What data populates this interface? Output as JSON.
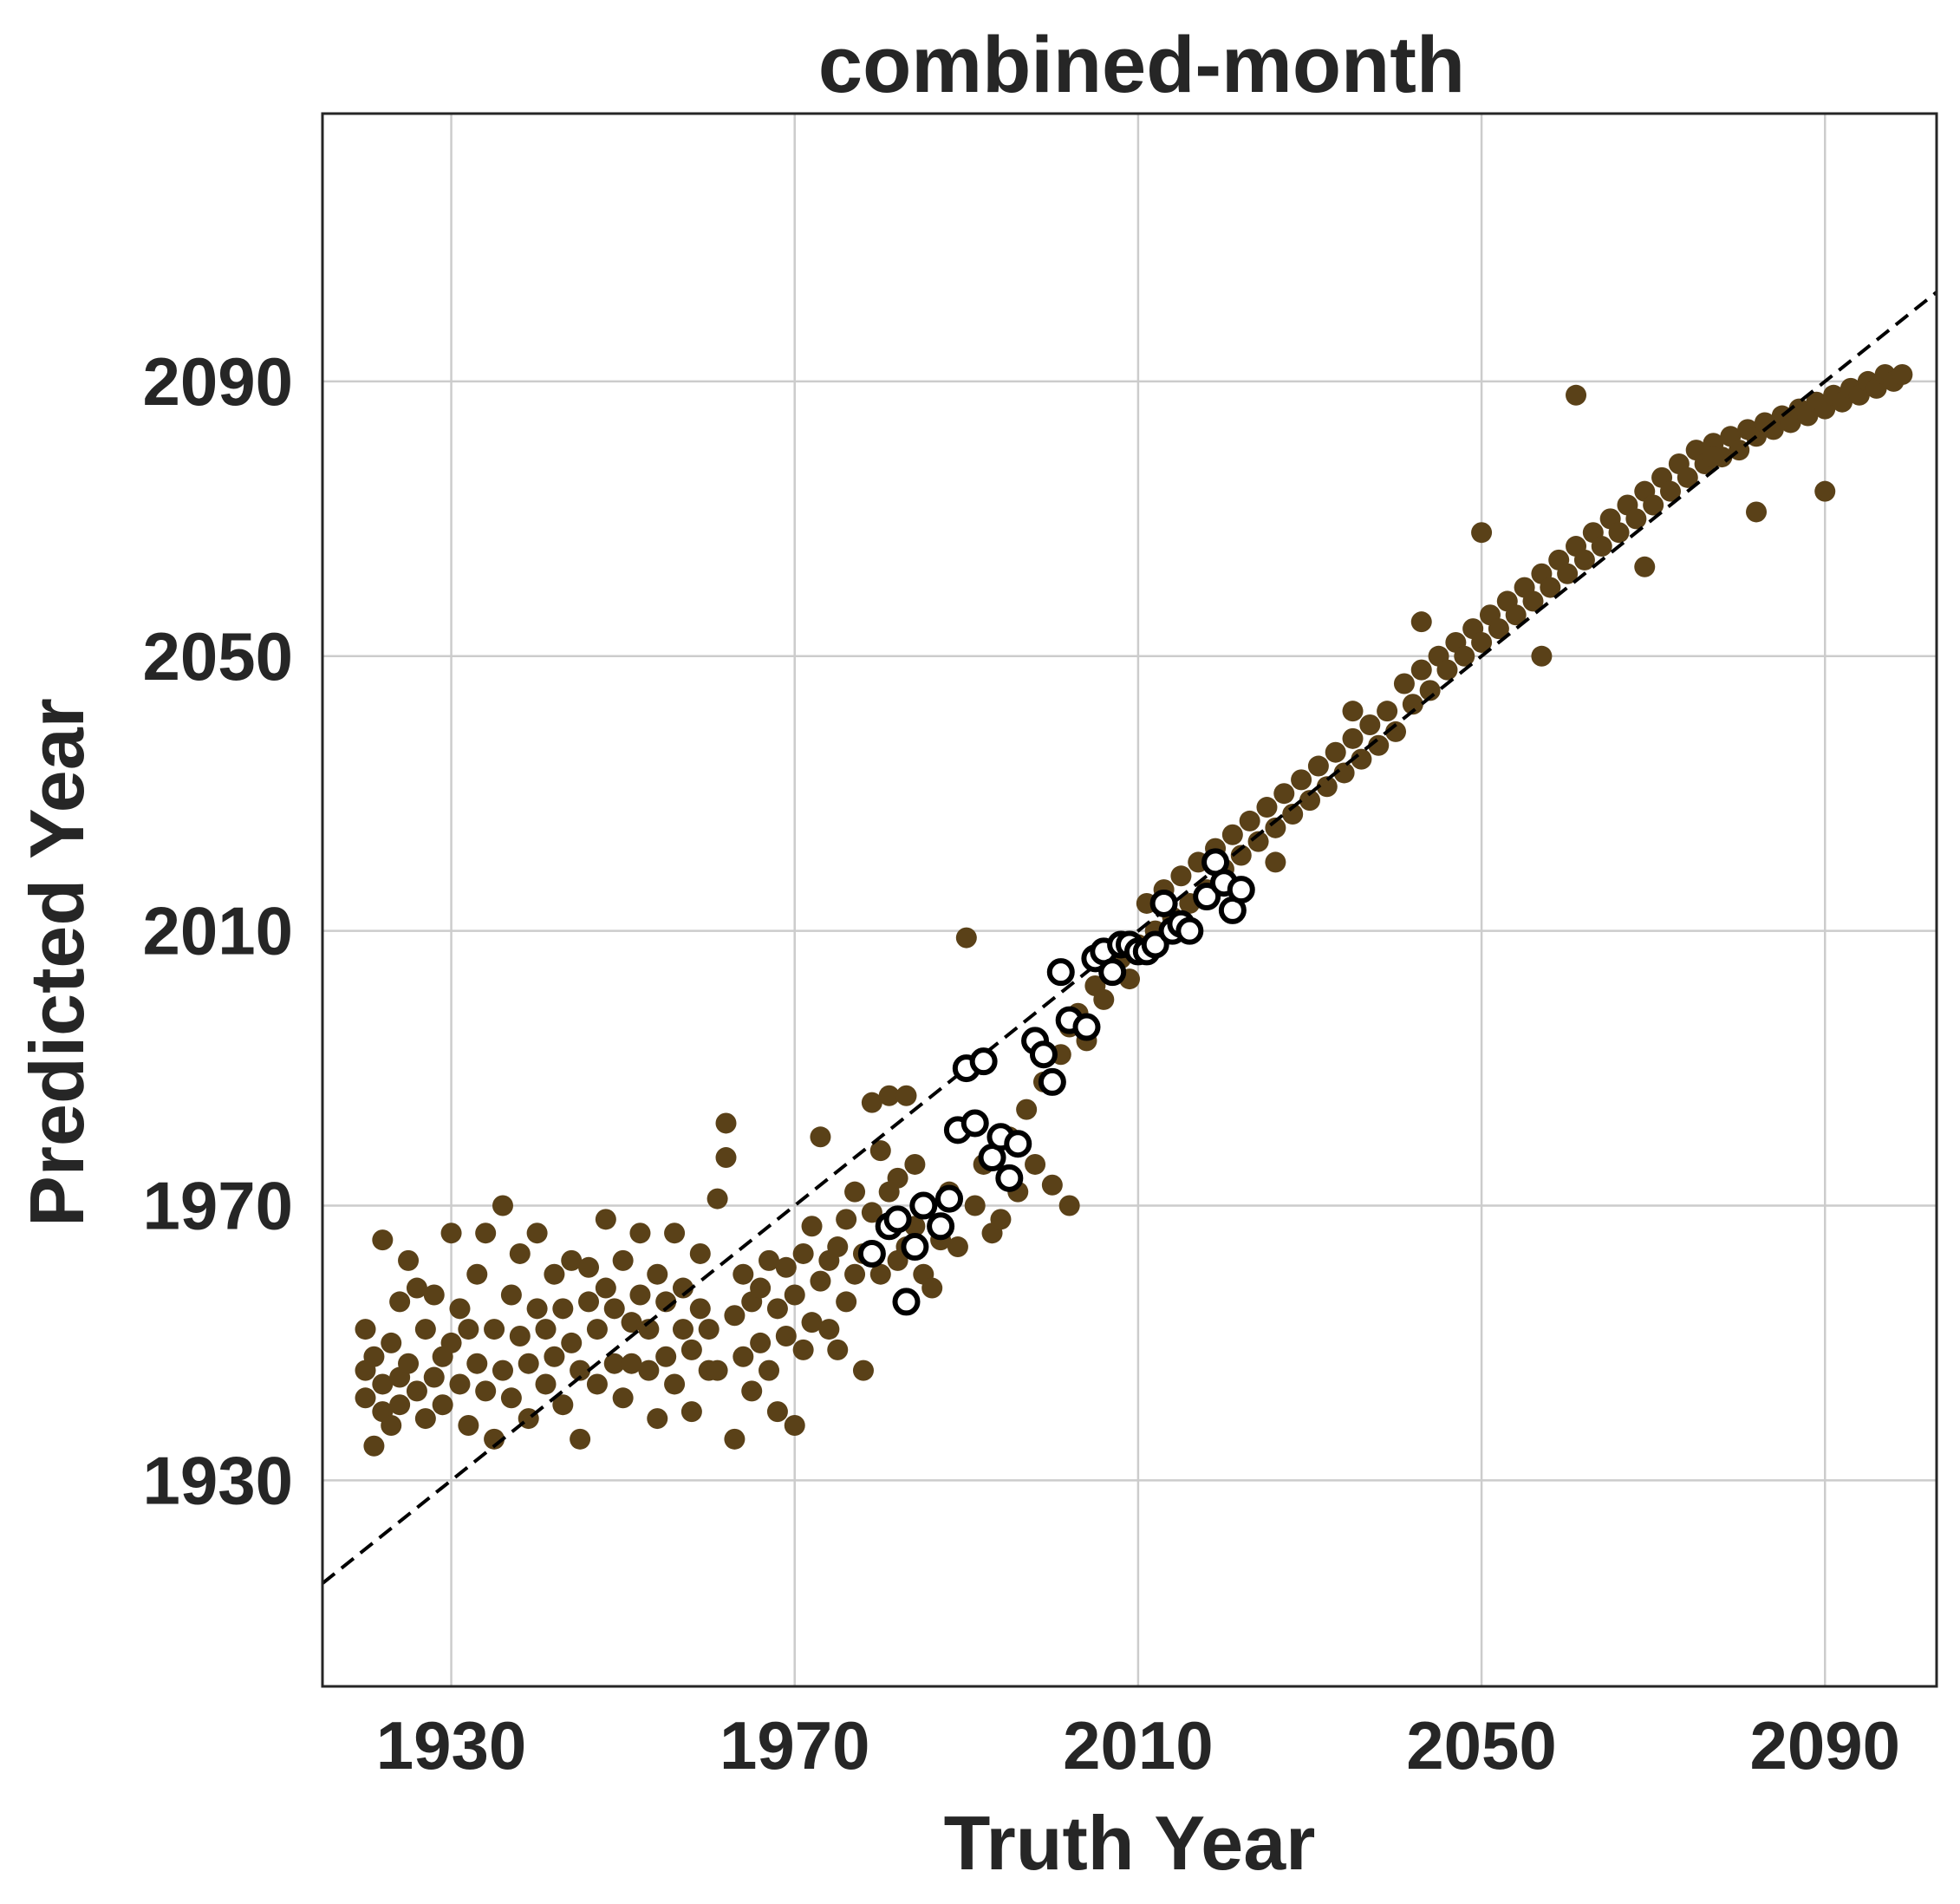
{
  "chart_data": {
    "type": "scatter",
    "title": "combined-month",
    "xlabel": "Truth Year",
    "ylabel": "Predicted Year",
    "xlim": [
      1915,
      2103
    ],
    "ylim": [
      1900,
      2129
    ],
    "xticks": [
      1930,
      1970,
      2010,
      2050,
      2090
    ],
    "yticks": [
      1930,
      1970,
      2010,
      2050,
      2090
    ],
    "grid": true,
    "reference_line": {
      "style": "dashed",
      "color": "#000000",
      "from": [
        1915,
        1915
      ],
      "to": [
        2103,
        2103
      ]
    },
    "series": [
      {
        "marker": "filled-circle",
        "color": "#5a4118",
        "points": [
          [
            1920,
            1946
          ],
          [
            1920,
            1942
          ],
          [
            1920,
            1952
          ],
          [
            1921,
            1935
          ],
          [
            1921,
            1948
          ],
          [
            1922,
            1965
          ],
          [
            1922,
            1944
          ],
          [
            1922,
            1940
          ],
          [
            1923,
            1950
          ],
          [
            1923,
            1938
          ],
          [
            1924,
            1945
          ],
          [
            1924,
            1956
          ],
          [
            1924,
            1941
          ],
          [
            1925,
            1962
          ],
          [
            1925,
            1947
          ],
          [
            1926,
            1958
          ],
          [
            1926,
            1943
          ],
          [
            1927,
            1939
          ],
          [
            1927,
            1952
          ],
          [
            1928,
            1945
          ],
          [
            1928,
            1957
          ],
          [
            1929,
            1948
          ],
          [
            1929,
            1941
          ],
          [
            1930,
            1966
          ],
          [
            1930,
            1950
          ],
          [
            1931,
            1944
          ],
          [
            1931,
            1955
          ],
          [
            1932,
            1938
          ],
          [
            1932,
            1952
          ],
          [
            1933,
            1947
          ],
          [
            1933,
            1960
          ],
          [
            1934,
            1943
          ],
          [
            1934,
            1966
          ],
          [
            1935,
            1952
          ],
          [
            1935,
            1936
          ],
          [
            1936,
            1970
          ],
          [
            1936,
            1946
          ],
          [
            1937,
            1957
          ],
          [
            1937,
            1942
          ],
          [
            1938,
            1963
          ],
          [
            1938,
            1951
          ],
          [
            1939,
            1947
          ],
          [
            1939,
            1939
          ],
          [
            1940,
            1955
          ],
          [
            1940,
            1966
          ],
          [
            1941,
            1944
          ],
          [
            1941,
            1952
          ],
          [
            1942,
            1960
          ],
          [
            1942,
            1948
          ],
          [
            1943,
            1941
          ],
          [
            1943,
            1955
          ],
          [
            1944,
            1962
          ],
          [
            1944,
            1950
          ],
          [
            1945,
            1936
          ],
          [
            1945,
            1946
          ],
          [
            1946,
            1956
          ],
          [
            1946,
            1961
          ],
          [
            1947,
            1944
          ],
          [
            1947,
            1952
          ],
          [
            1948,
            1968
          ],
          [
            1948,
            1958
          ],
          [
            1949,
            1947
          ],
          [
            1949,
            1955
          ],
          [
            1950,
            1942
          ],
          [
            1950,
            1962
          ],
          [
            1951,
            1953
          ],
          [
            1951,
            1947
          ],
          [
            1952,
            1966
          ],
          [
            1952,
            1957
          ],
          [
            1953,
            1946
          ],
          [
            1953,
            1952
          ],
          [
            1954,
            1939
          ],
          [
            1954,
            1960
          ],
          [
            1955,
            1948
          ],
          [
            1955,
            1956
          ],
          [
            1956,
            1966
          ],
          [
            1956,
            1944
          ],
          [
            1957,
            1952
          ],
          [
            1957,
            1958
          ],
          [
            1958,
            1940
          ],
          [
            1958,
            1949
          ],
          [
            1959,
            1955
          ],
          [
            1959,
            1963
          ],
          [
            1960,
            1946
          ],
          [
            1960,
            1952
          ],
          [
            1961,
            1971
          ],
          [
            1961,
            1946
          ],
          [
            1962,
            1977
          ],
          [
            1962,
            1982
          ],
          [
            1963,
            1954
          ],
          [
            1963,
            1936
          ],
          [
            1964,
            1948
          ],
          [
            1964,
            1960
          ],
          [
            1965,
            1956
          ],
          [
            1965,
            1943
          ],
          [
            1966,
            1958
          ],
          [
            1966,
            1950
          ],
          [
            1967,
            1962
          ],
          [
            1967,
            1946
          ],
          [
            1968,
            1955
          ],
          [
            1968,
            1940
          ],
          [
            1969,
            1961
          ],
          [
            1969,
            1951
          ],
          [
            1970,
            1957
          ],
          [
            1970,
            1938
          ],
          [
            1971,
            1949
          ],
          [
            1971,
            1963
          ],
          [
            1972,
            1967
          ],
          [
            1972,
            1953
          ],
          [
            1973,
            1959
          ],
          [
            1973,
            1980
          ],
          [
            1974,
            1962
          ],
          [
            1974,
            1952
          ],
          [
            1975,
            1964
          ],
          [
            1975,
            1949
          ],
          [
            1976,
            1968
          ],
          [
            1976,
            1956
          ],
          [
            1977,
            1972
          ],
          [
            1977,
            1960
          ],
          [
            1978,
            1963
          ],
          [
            1978,
            1946
          ],
          [
            1979,
            1985
          ],
          [
            1979,
            1969
          ],
          [
            1980,
            1960
          ],
          [
            1980,
            1978
          ],
          [
            1981,
            1986
          ],
          [
            1981,
            1972
          ],
          [
            1982,
            1974
          ],
          [
            1982,
            1962
          ],
          [
            1983,
            1986
          ],
          [
            1983,
            1964
          ],
          [
            1984,
            1976
          ],
          [
            1984,
            1967
          ],
          [
            1985,
            1970
          ],
          [
            1985,
            1960
          ],
          [
            1986,
            1958
          ],
          [
            1987,
            1965
          ],
          [
            1988,
            1972
          ],
          [
            1989,
            1964
          ],
          [
            1990,
            2009
          ],
          [
            1991,
            1970
          ],
          [
            1992,
            1976
          ],
          [
            1993,
            1966
          ],
          [
            1994,
            1968
          ],
          [
            1995,
            1980
          ],
          [
            1996,
            1972
          ],
          [
            1997,
            1984
          ],
          [
            1998,
            1976
          ],
          [
            1999,
            1988
          ],
          [
            2000,
            1973
          ],
          [
            2001,
            1992
          ],
          [
            2002,
            1970
          ],
          [
            2002,
            1996
          ],
          [
            2003,
            1998
          ],
          [
            2004,
            1994
          ],
          [
            2005,
            2002
          ],
          [
            2006,
            2000
          ],
          [
            2007,
            2004
          ],
          [
            2008,
            2006
          ],
          [
            2009,
            2003
          ],
          [
            2010,
            2008
          ],
          [
            2011,
            2014
          ],
          [
            2012,
            2010
          ],
          [
            2013,
            2016
          ],
          [
            2014,
            2012
          ],
          [
            2015,
            2018
          ],
          [
            2016,
            2014
          ],
          [
            2017,
            2020
          ],
          [
            2018,
            2016
          ],
          [
            2019,
            2022
          ],
          [
            2020,
            2019
          ],
          [
            2021,
            2024
          ],
          [
            2022,
            2021
          ],
          [
            2023,
            2026
          ],
          [
            2024,
            2023
          ],
          [
            2025,
            2028
          ],
          [
            2026,
            2025
          ],
          [
            2027,
            2030
          ],
          [
            2028,
            2027
          ],
          [
            2029,
            2032
          ],
          [
            2030,
            2029
          ],
          [
            2031,
            2034
          ],
          [
            2032,
            2031
          ],
          [
            2033,
            2036
          ],
          [
            2034,
            2033
          ],
          [
            2035,
            2038
          ],
          [
            2036,
            2035
          ],
          [
            2037,
            2040
          ],
          [
            2038,
            2037
          ],
          [
            2039,
            2042
          ],
          [
            2040,
            2039
          ],
          [
            2041,
            2046
          ],
          [
            2042,
            2043
          ],
          [
            2043,
            2048
          ],
          [
            2044,
            2045
          ],
          [
            2045,
            2050
          ],
          [
            2046,
            2048
          ],
          [
            2047,
            2052
          ],
          [
            2048,
            2050
          ],
          [
            2049,
            2054
          ],
          [
            2050,
            2052
          ],
          [
            2051,
            2056
          ],
          [
            2052,
            2054
          ],
          [
            2053,
            2058
          ],
          [
            2054,
            2056
          ],
          [
            2055,
            2060
          ],
          [
            2056,
            2058
          ],
          [
            2057,
            2062
          ],
          [
            2058,
            2060
          ],
          [
            2059,
            2064
          ],
          [
            2060,
            2062
          ],
          [
            2061,
            2066
          ],
          [
            2062,
            2064
          ],
          [
            2063,
            2068
          ],
          [
            2064,
            2066
          ],
          [
            2065,
            2070
          ],
          [
            2066,
            2068
          ],
          [
            2067,
            2072
          ],
          [
            2068,
            2070
          ],
          [
            2069,
            2074
          ],
          [
            2070,
            2072
          ],
          [
            2071,
            2076
          ],
          [
            2072,
            2074
          ],
          [
            2073,
            2078
          ],
          [
            2074,
            2076
          ],
          [
            2075,
            2080
          ],
          [
            2076,
            2078
          ],
          [
            2077,
            2081
          ],
          [
            2078,
            2079
          ],
          [
            2079,
            2082
          ],
          [
            2080,
            2080
          ],
          [
            2081,
            2083
          ],
          [
            2082,
            2082
          ],
          [
            2083,
            2084
          ],
          [
            2084,
            2083
          ],
          [
            2085,
            2085
          ],
          [
            2086,
            2084
          ],
          [
            2087,
            2086
          ],
          [
            2088,
            2085
          ],
          [
            2089,
            2087
          ],
          [
            2090,
            2086
          ],
          [
            2091,
            2088
          ],
          [
            2092,
            2087
          ],
          [
            2093,
            2089
          ],
          [
            2094,
            2088
          ],
          [
            2095,
            2090
          ],
          [
            2096,
            2089
          ],
          [
            2097,
            2091
          ],
          [
            2098,
            2090
          ],
          [
            2099,
            2091
          ],
          [
            2061,
            2088
          ],
          [
            2082,
            2071
          ],
          [
            2069,
            2063
          ],
          [
            2050,
            2068
          ],
          [
            2035,
            2042
          ],
          [
            2026,
            2020
          ],
          [
            2043,
            2055
          ],
          [
            2057,
            2050
          ],
          [
            2077,
            2079
          ],
          [
            2090,
            2074
          ]
        ]
      },
      {
        "marker": "open-circle",
        "edge_color": "#000000",
        "face_color": "#ffffff",
        "points": [
          [
            1979,
            1963
          ],
          [
            1981,
            1967
          ],
          [
            1982,
            1968
          ],
          [
            1983,
            1956
          ],
          [
            1984,
            1964
          ],
          [
            1985,
            1970
          ],
          [
            1987,
            1967
          ],
          [
            1988,
            1971
          ],
          [
            1989,
            1981
          ],
          [
            1990,
            1990
          ],
          [
            1991,
            1982
          ],
          [
            1992,
            1991
          ],
          [
            1993,
            1977
          ],
          [
            1994,
            1980
          ],
          [
            1995,
            1974
          ],
          [
            1996,
            1979
          ],
          [
            1998,
            1994
          ],
          [
            1999,
            1992
          ],
          [
            2000,
            1988
          ],
          [
            2001,
            2004
          ],
          [
            2002,
            1997
          ],
          [
            2004,
            1996
          ],
          [
            2005,
            2006
          ],
          [
            2006,
            2007
          ],
          [
            2007,
            2004
          ],
          [
            2008,
            2008
          ],
          [
            2009,
            2008
          ],
          [
            2010,
            2007
          ],
          [
            2011,
            2007
          ],
          [
            2012,
            2008
          ],
          [
            2013,
            2014
          ],
          [
            2014,
            2010
          ],
          [
            2015,
            2011
          ],
          [
            2016,
            2010
          ],
          [
            2018,
            2015
          ],
          [
            2019,
            2020
          ],
          [
            2020,
            2017
          ],
          [
            2021,
            2013
          ],
          [
            2022,
            2016
          ]
        ]
      }
    ]
  }
}
